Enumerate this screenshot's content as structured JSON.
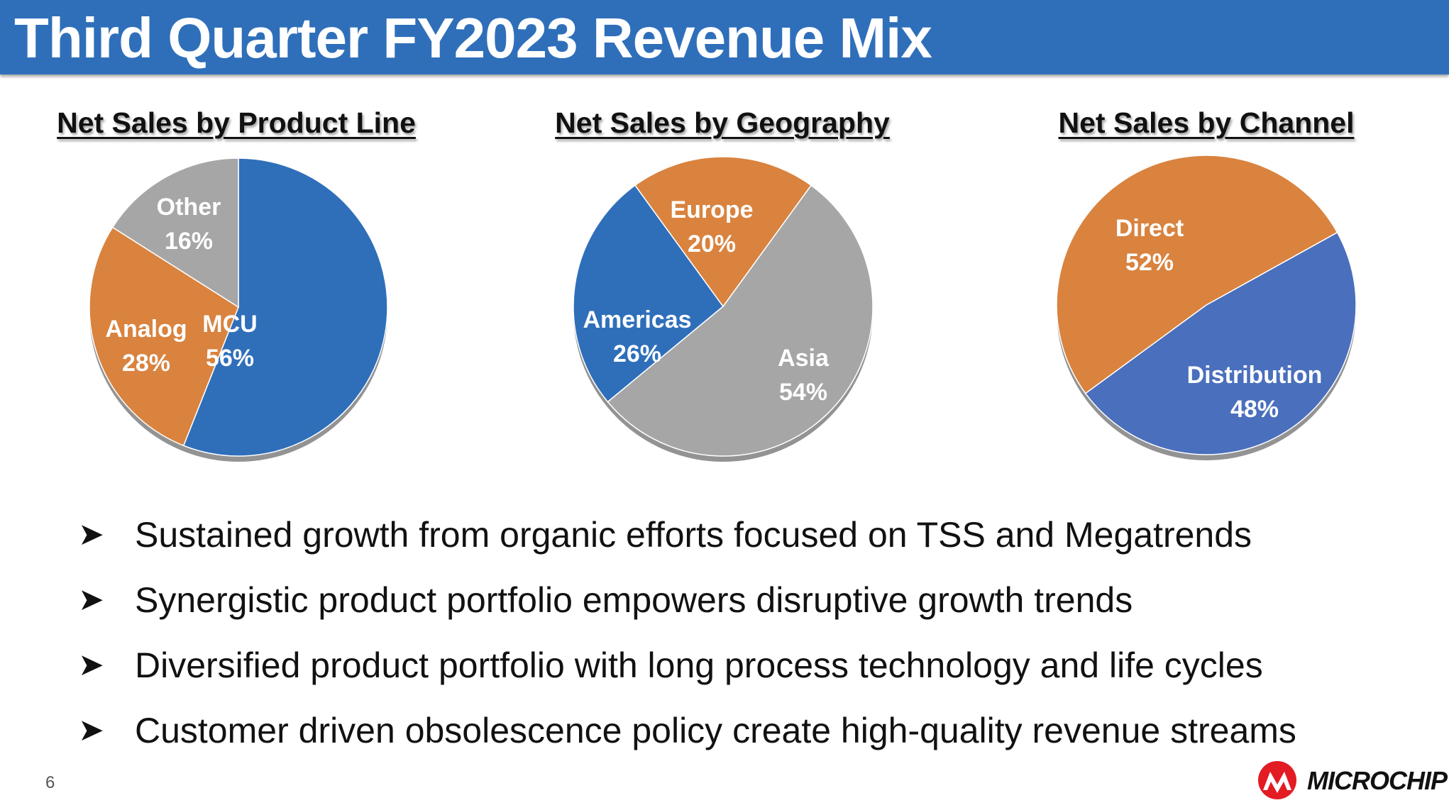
{
  "slide": {
    "title": "Third Quarter FY2023 Revenue Mix",
    "page_number": "6",
    "logo_text": "MICROCHIP"
  },
  "bullets": [
    "Sustained growth from organic efforts focused on TSS and Megatrends",
    "Synergistic product portfolio empowers disruptive growth trends",
    "Diversified product portfolio with long process technology and life cycles",
    "Customer driven obsolescence policy create high-quality revenue streams"
  ],
  "chart_data": [
    {
      "type": "pie",
      "title": "Net Sales by Product Line",
      "slices": [
        {
          "label": "MCU",
          "value": 56,
          "value_label": "56%",
          "color": "#2f6fba"
        },
        {
          "label": "Analog",
          "value": 28,
          "value_label": "28%",
          "color": "#d9833f"
        },
        {
          "label": "Other",
          "value": 16,
          "value_label": "16%",
          "color": "#a6a6a6"
        }
      ]
    },
    {
      "type": "pie",
      "title": "Net Sales by Geography",
      "slices": [
        {
          "label": "Asia",
          "value": 54,
          "value_label": "54%",
          "color": "#a6a6a6"
        },
        {
          "label": "Americas",
          "value": 26,
          "value_label": "26%",
          "color": "#2f6fba"
        },
        {
          "label": "Europe",
          "value": 20,
          "value_label": "20%",
          "color": "#d9833f"
        }
      ]
    },
    {
      "type": "pie",
      "title": "Net Sales by Channel",
      "slices": [
        {
          "label": "Distribution",
          "value": 48,
          "value_label": "48%",
          "color": "#4a6fbd"
        },
        {
          "label": "Direct",
          "value": 52,
          "value_label": "52%",
          "color": "#d9833f"
        }
      ]
    }
  ]
}
